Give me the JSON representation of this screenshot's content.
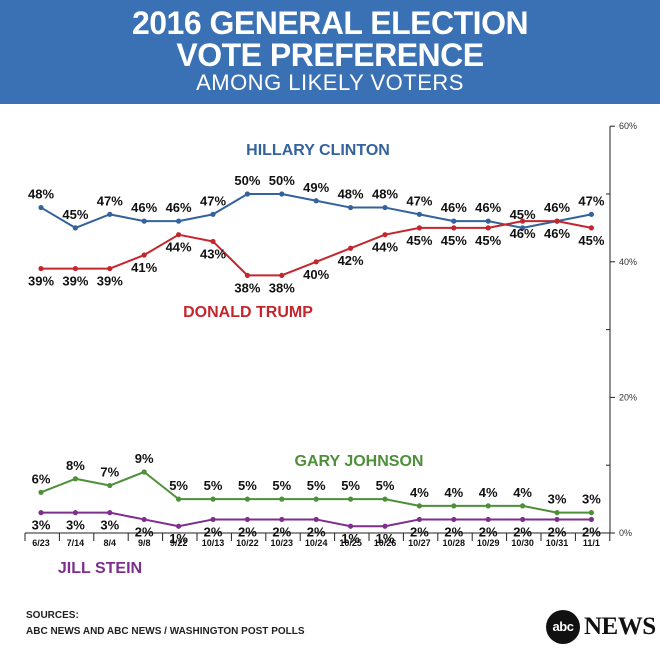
{
  "header": {
    "title_line1": "2016 GENERAL ELECTION",
    "title_line2": "VOTE PREFERENCE",
    "subtitle": "AMONG LIKELY VOTERS"
  },
  "chart_data": {
    "type": "line",
    "categories": [
      "6/23",
      "7/14",
      "8/4",
      "9/8",
      "9/22",
      "10/13",
      "10/22",
      "10/23",
      "10/24",
      "10/25",
      "10/26",
      "10/27",
      "10/28",
      "10/29",
      "10/30",
      "10/31",
      "11/1"
    ],
    "ylim": [
      0,
      60
    ],
    "yticks": [
      0,
      20,
      40,
      60
    ],
    "ytick_labels": [
      "0%",
      "20%",
      "40%",
      "60%"
    ],
    "series": [
      {
        "name": "HILLARY CLINTON",
        "color": "#33629c",
        "values": [
          48,
          45,
          47,
          46,
          46,
          47,
          50,
          50,
          49,
          48,
          48,
          47,
          46,
          46,
          45,
          46,
          47
        ]
      },
      {
        "name": "DONALD TRUMP",
        "color": "#c5262e",
        "values": [
          39,
          39,
          39,
          41,
          44,
          43,
          38,
          38,
          40,
          42,
          44,
          45,
          45,
          45,
          46,
          46,
          45
        ]
      },
      {
        "name": "GARY JOHNSON",
        "color": "#4e8f3a",
        "values": [
          6,
          8,
          7,
          9,
          5,
          5,
          5,
          5,
          5,
          5,
          5,
          4,
          4,
          4,
          4,
          3,
          3
        ]
      },
      {
        "name": "JILL STEIN",
        "color": "#7e2e8c",
        "values": [
          3,
          3,
          3,
          2,
          1,
          2,
          2,
          2,
          2,
          1,
          1,
          2,
          2,
          2,
          2,
          2,
          2
        ]
      }
    ]
  },
  "footer": {
    "sources_label": "SOURCES:",
    "sources_text": "ABC NEWS AND ABC NEWS / WASHINGTON POST POLLS"
  },
  "logo": {
    "mark": "abc",
    "wordmark": "NEWS"
  }
}
